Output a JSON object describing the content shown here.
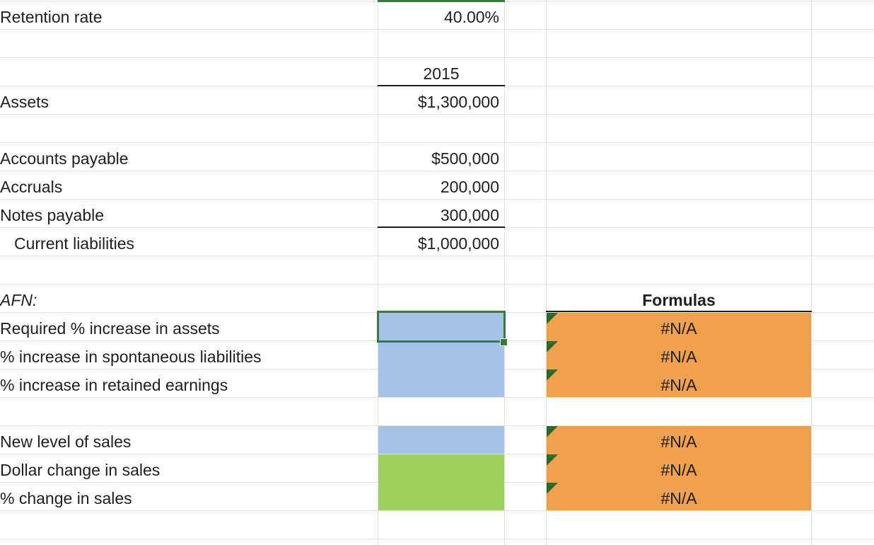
{
  "sheet": {
    "retention_rate": {
      "label": "Retention rate",
      "value": "40.00%"
    },
    "year_header": "2015",
    "assets": {
      "label": "Assets",
      "value": "$1,300,000"
    },
    "accounts_payable": {
      "label": "Accounts payable",
      "value": "$500,000"
    },
    "accruals": {
      "label": "Accruals",
      "value": "200,000"
    },
    "notes_payable": {
      "label": "Notes payable",
      "value": "300,000"
    },
    "current_liabilities": {
      "label": "Current liabilities",
      "value": "$1,000,000"
    },
    "afn": {
      "header": "AFN:",
      "required_assets": "Required % increase in assets",
      "spont_liabilities": "% increase in spontaneous liabilities",
      "retained_earnings": "% increase in retained earnings",
      "new_sales": "New level of sales",
      "dollar_change": "Dollar change in sales",
      "pct_change": "% change in sales"
    },
    "formulas": {
      "header": "Formulas",
      "results": [
        "#N/A",
        "#N/A",
        "#N/A",
        "#N/A",
        "#N/A",
        "#N/A"
      ]
    }
  },
  "colors": {
    "input_blue": "#a4c2e4",
    "input_green": "#9fd15f",
    "formula_orange": "#f0a04b",
    "selection_green": "#3b7a3b"
  }
}
